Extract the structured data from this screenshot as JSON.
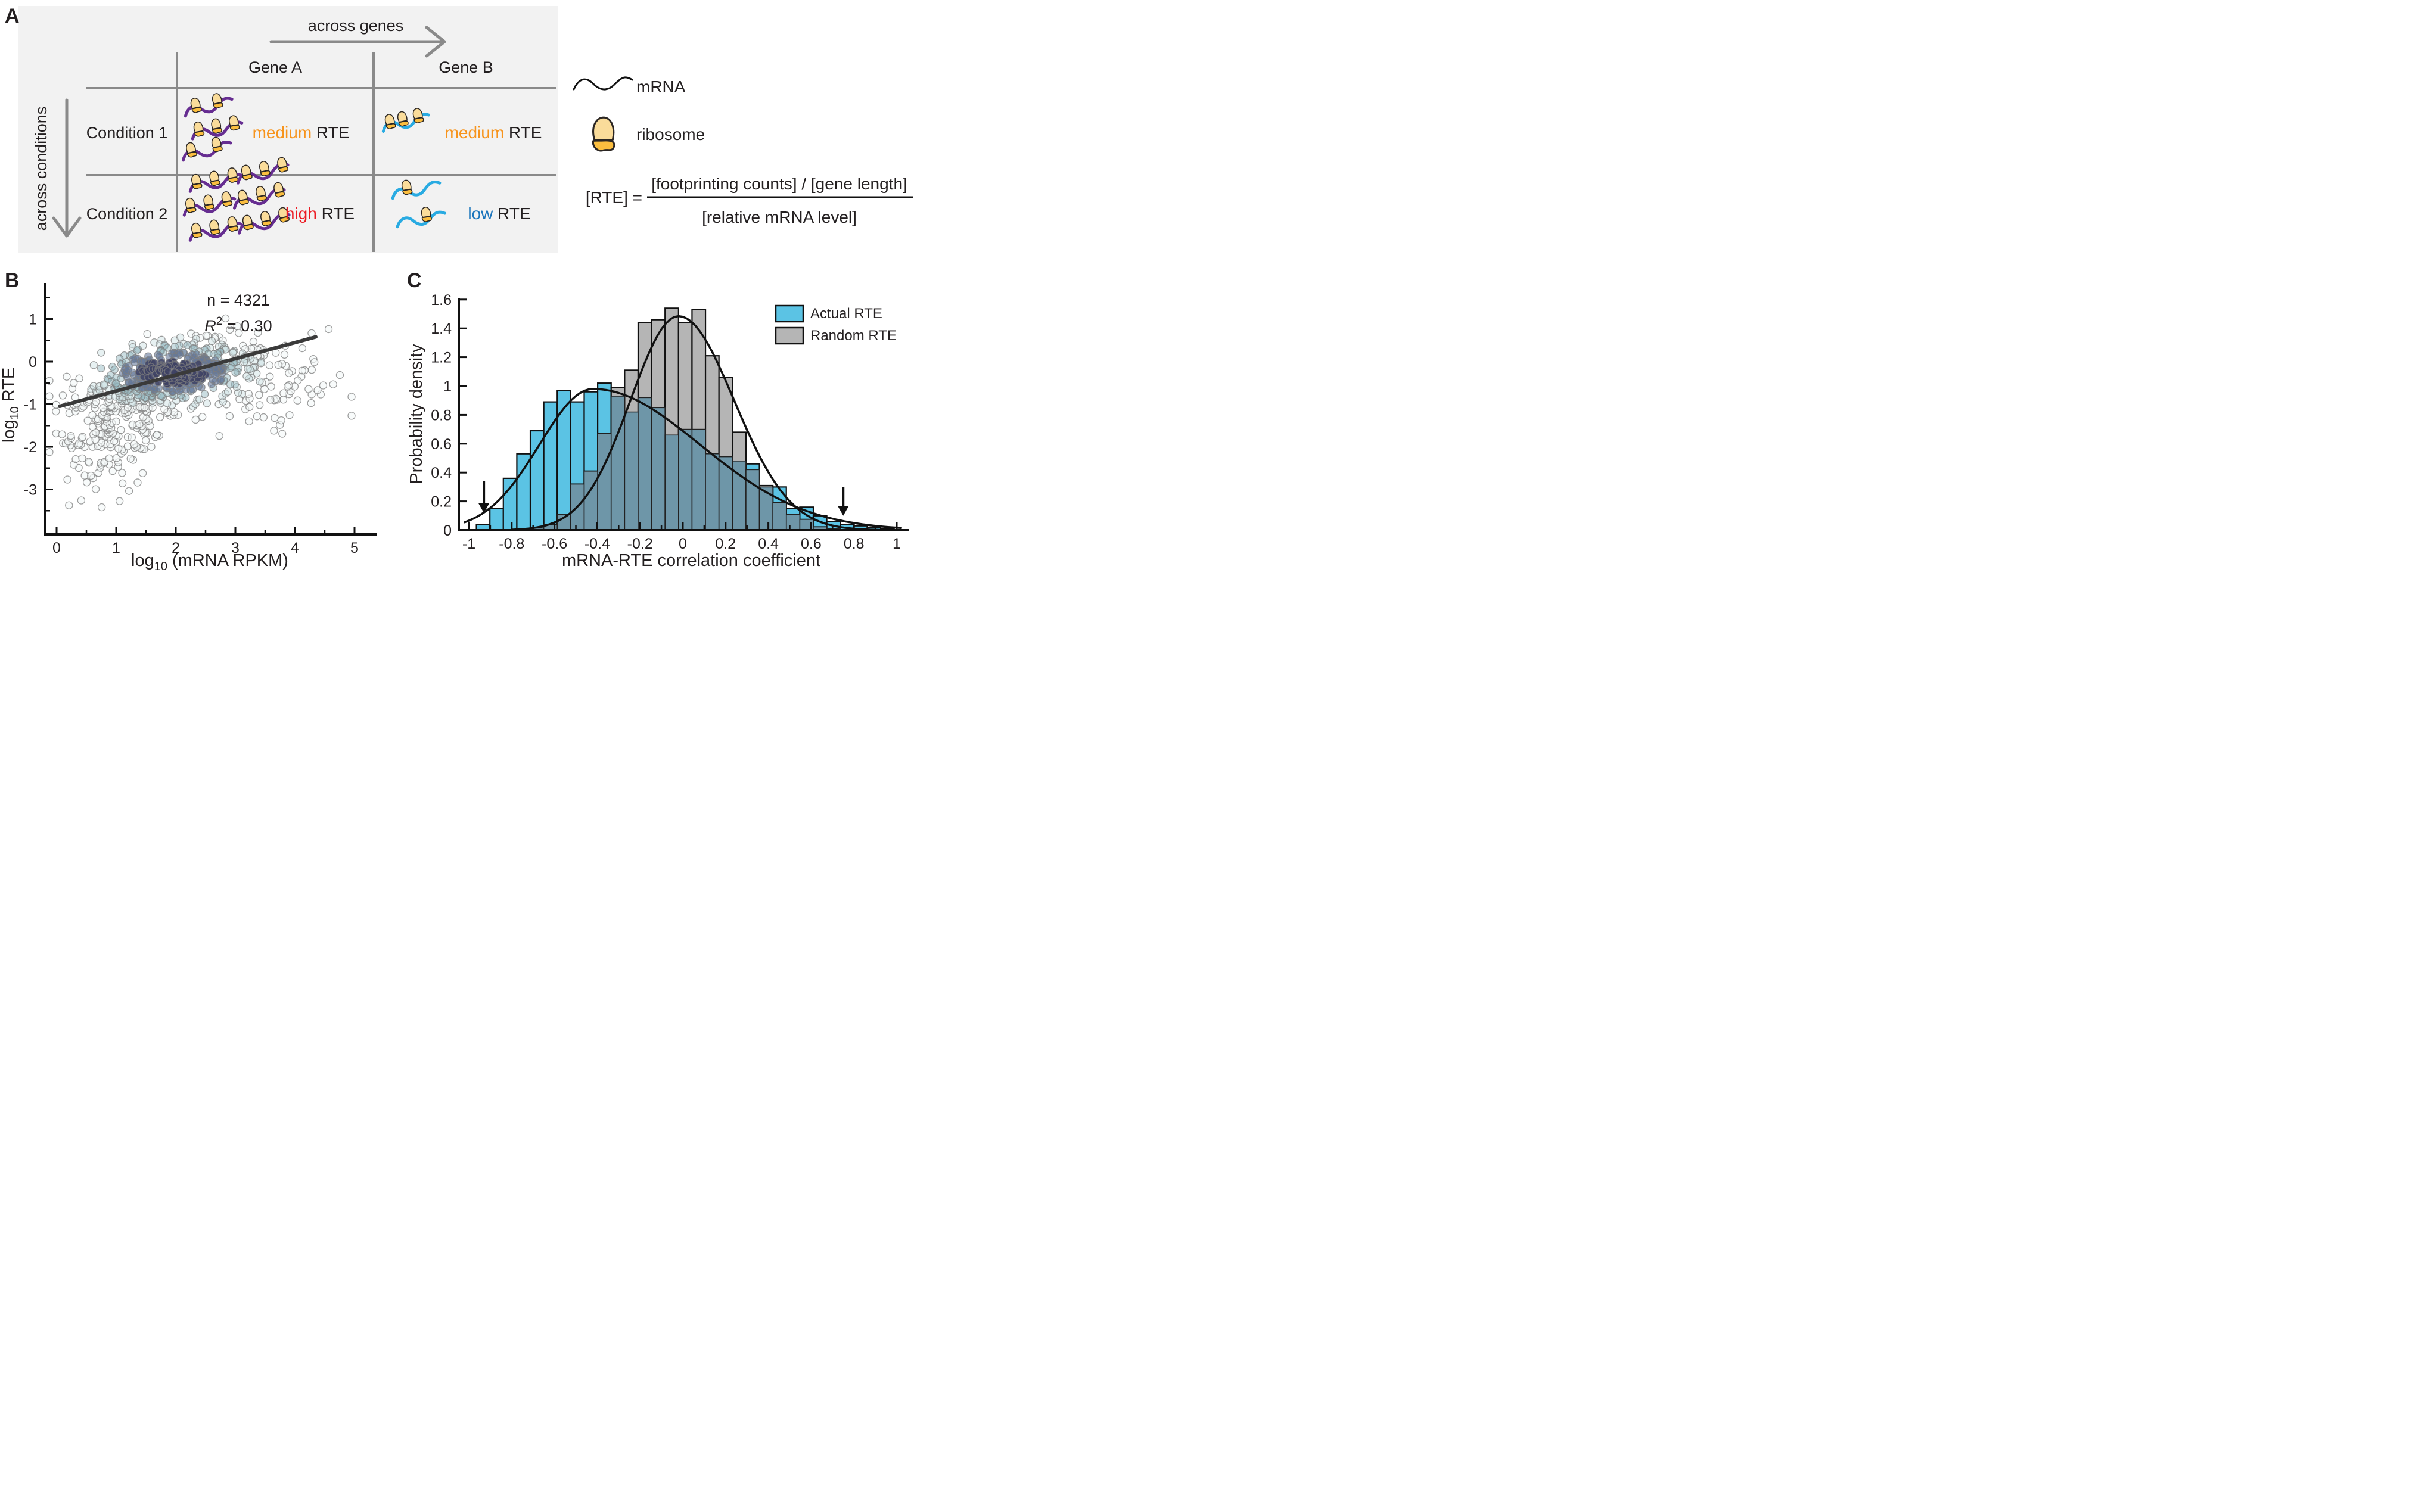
{
  "panelA": {
    "label": "A",
    "bg_color": "#F2F2F2",
    "across_genes": "across genes",
    "across_conditions": "across conditions",
    "genes": [
      "Gene A",
      "Gene B"
    ],
    "conditions": [
      "Condition 1",
      "Condition 2"
    ],
    "cells": [
      {
        "row": 0,
        "col": 0,
        "word": "medium",
        "word_color": "#F7941D",
        "suffix": " RTE",
        "rna_color": "#662D91",
        "rnas": [
          [
            310,
            188,
            82,
            -12,
            [
              0.25,
              0.7
            ]
          ],
          [
            322,
            226,
            86,
            -10,
            [
              0.15,
              0.5,
              0.85
            ]
          ],
          [
            306,
            262,
            84,
            -12,
            [
              0.2,
              0.72
            ]
          ]
        ]
      },
      {
        "row": 0,
        "col": 1,
        "word": "medium",
        "word_color": "#F7941D",
        "suffix": " RTE",
        "rna_color": "#29ABE2",
        "rnas": [
          [
            642,
            214,
            80,
            -12,
            [
              0.18,
              0.45,
              0.78
            ]
          ]
        ]
      },
      {
        "row": 1,
        "col": 0,
        "word": "high",
        "word_color": "#EC1C24",
        "suffix": " RTE",
        "rna_color": "#662D91",
        "rnas": [
          [
            318,
            314,
            88,
            -10,
            [
              0.15,
              0.5,
              0.85
            ]
          ],
          [
            398,
            300,
            88,
            -12,
            [
              0.2,
              0.55,
              0.9
            ]
          ],
          [
            308,
            354,
            88,
            -10,
            [
              0.15,
              0.5,
              0.85
            ]
          ],
          [
            392,
            342,
            88,
            -12,
            [
              0.2,
              0.55,
              0.9
            ]
          ],
          [
            318,
            396,
            88,
            -10,
            [
              0.15,
              0.5,
              0.85
            ]
          ],
          [
            400,
            384,
            88,
            -12,
            [
              0.2,
              0.55,
              0.9
            ]
          ]
        ]
      },
      {
        "row": 1,
        "col": 1,
        "word": "low",
        "word_color": "#1B75BC",
        "suffix": " RTE",
        "rna_color": "#29ABE2",
        "rnas": [
          [
            658,
            326,
            82,
            -10,
            [
              0.32
            ]
          ],
          [
            666,
            374,
            82,
            -8,
            [
              0.62
            ]
          ]
        ]
      }
    ],
    "key": {
      "mrna": "mRNA",
      "ribosome": "ribosome"
    },
    "formula": {
      "lhs": "[RTE] = ",
      "numerator": "[footprinting counts] / [gene length]",
      "denominator": "[relative mRNA level]"
    },
    "ribosome_colors": {
      "top": "#FADC9A",
      "bottom": "#FBBE3F",
      "outline": "#2B2623"
    },
    "grid_color": "#8A8A8A"
  },
  "panelB": {
    "label": "B",
    "xlabel_parts": {
      "pre": "log",
      "sub": "10",
      "post": " (mRNA RPKM)"
    },
    "ylabel_parts": {
      "pre": "log",
      "sub": "10",
      "post": " RTE"
    },
    "annotation": {
      "n": "n = 4321",
      "r_pre": "R",
      "r_sup": "2",
      "r_post": " = 0.30"
    }
  },
  "panelC": {
    "label": "C",
    "xlabel": "mRNA-RTE correlation coefficient",
    "ylabel": "Probability density"
  },
  "chart_data": [
    {
      "type": "scatter",
      "panel": "B",
      "xlabel": "log10 (mRNA RPKM)",
      "ylabel": "log10 RTE",
      "xlim": [
        -0.25,
        5.2
      ],
      "ylim": [
        -4.0,
        1.8
      ],
      "xticks": {
        "values": [
          0,
          1,
          2,
          3,
          4,
          5
        ],
        "labels": [
          "0",
          "1",
          "2",
          "3",
          "4",
          "5"
        ]
      },
      "xminor": [
        0.5,
        1.5,
        2.5,
        3.5,
        4.5
      ],
      "yticks": {
        "values": [
          1,
          0,
          -1,
          -2,
          -3
        ],
        "labels": [
          "1",
          "0",
          "-1",
          "-2",
          "-3"
        ]
      },
      "yminor": [
        1.5,
        0.5,
        -0.5,
        -1.5,
        -2.5,
        -3.5
      ],
      "n": 4321,
      "r_squared": 0.3,
      "regression_line": {
        "x1": 0.05,
        "y1": -1.05,
        "x2": 4.35,
        "y2": 0.58,
        "color": "#3A3A3A"
      },
      "point_style": {
        "radius": 6,
        "edge": "rgba(125,125,125,0.75)"
      },
      "density_palette": [
        "rgba(244,249,249,0.65)",
        "rgba(208,228,230,0.5)",
        "rgba(152,188,196,0.5)",
        "rgba(100,120,154,0.6)",
        "rgba(62,66,100,0.85)"
      ],
      "point_cloud_model": {
        "seed": 42,
        "clusters": [
          {
            "n": 420,
            "cx": 1.95,
            "cy": -0.22,
            "sx": 0.78,
            "sy": 0.4,
            "rho": 0.45
          },
          {
            "n": 150,
            "cx": 1.1,
            "cy": -1.1,
            "sx": 0.55,
            "sy": 0.45,
            "rho": 0.2
          },
          {
            "n": 90,
            "cx": 0.8,
            "cy": -2.1,
            "sx": 0.45,
            "sy": 0.55,
            "rho": 0.1
          },
          {
            "n": 60,
            "cx": 3.3,
            "cy": -0.75,
            "sx": 0.55,
            "sy": 0.6,
            "rho": 0.0
          },
          {
            "n": 25,
            "cx": 4.1,
            "cy": -0.3,
            "sx": 0.4,
            "sy": 0.5,
            "rho": 0.0
          }
        ],
        "x_clamp": [
          -0.12,
          4.95
        ],
        "y_clamp": [
          -3.42,
          1.52
        ]
      }
    },
    {
      "type": "bar",
      "subtype": "histogram",
      "panel": "C",
      "xlabel": "mRNA-RTE correlation coefficient",
      "ylabel": "Probability density",
      "xlim": [
        -1.08,
        1.08
      ],
      "ylim": [
        0,
        1.6
      ],
      "xticks": {
        "values": [
          -1,
          -0.8,
          -0.6,
          -0.4,
          -0.2,
          0,
          0.2,
          0.4,
          0.6,
          0.8,
          1
        ],
        "labels": [
          "-1",
          "-0.8",
          "-0.6",
          "-0.4",
          "-0.2",
          "0",
          "0.2",
          "0.4",
          "0.6",
          "0.8",
          "1"
        ]
      },
      "xminor": [
        -0.9,
        -0.7,
        -0.5,
        -0.3,
        -0.1,
        0.1,
        0.3,
        0.5,
        0.7,
        0.9
      ],
      "yticks": {
        "values": [
          0,
          0.2,
          0.4,
          0.6,
          0.8,
          1,
          1.2,
          1.4,
          1.6
        ],
        "labels": [
          "0",
          "0.2",
          "0.4",
          "0.6",
          "0.8",
          "1",
          "1.2",
          "1.4",
          "1.6"
        ]
      },
      "bin_start": -0.965,
      "bin_width": 0.063,
      "series": [
        {
          "name": "Actual RTE",
          "color": "#5BC3E4",
          "values": [
            0.04,
            0.15,
            0.36,
            0.53,
            0.69,
            0.89,
            0.97,
            0.89,
            0.96,
            1.02,
            0.93,
            0.82,
            0.92,
            0.85,
            0.66,
            0.7,
            0.7,
            0.53,
            0.51,
            0.48,
            0.46,
            0.3,
            0.3,
            0.15,
            0.16,
            0.1,
            0.06,
            0.04,
            0.03,
            0.02,
            0.01
          ]
        },
        {
          "name": "Random RTE",
          "color": "#B5B5B5",
          "values": [
            0,
            0,
            0,
            0,
            0.015,
            0.04,
            0.11,
            0.32,
            0.41,
            0.67,
            0.99,
            1.11,
            1.44,
            1.46,
            1.54,
            1.44,
            1.53,
            1.21,
            1.06,
            0.68,
            0.42,
            0.31,
            0.19,
            0.11,
            0.075,
            0.023,
            0.01,
            0,
            0,
            0,
            0
          ]
        }
      ],
      "overlap_color": "#6E96A8",
      "bar_edge_color": "#111111",
      "curves": [
        {
          "series": "Actual RTE",
          "mode": -0.42,
          "peak": 0.98,
          "sd_left": 0.25,
          "sd_right": 0.5,
          "from": -1.02,
          "to": 1.02
        },
        {
          "series": "Random RTE",
          "mode": -0.02,
          "peak": 1.485,
          "sd_left": 0.225,
          "sd_right": 0.26,
          "from": -0.8,
          "to": 0.94
        }
      ],
      "arrows": [
        {
          "x": -0.93,
          "y_top": 0.34,
          "y_tip": 0.12
        },
        {
          "x": 0.75,
          "y_top": 0.3,
          "y_tip": 0.1
        }
      ],
      "legend_position": "upper right",
      "grid": false
    }
  ]
}
